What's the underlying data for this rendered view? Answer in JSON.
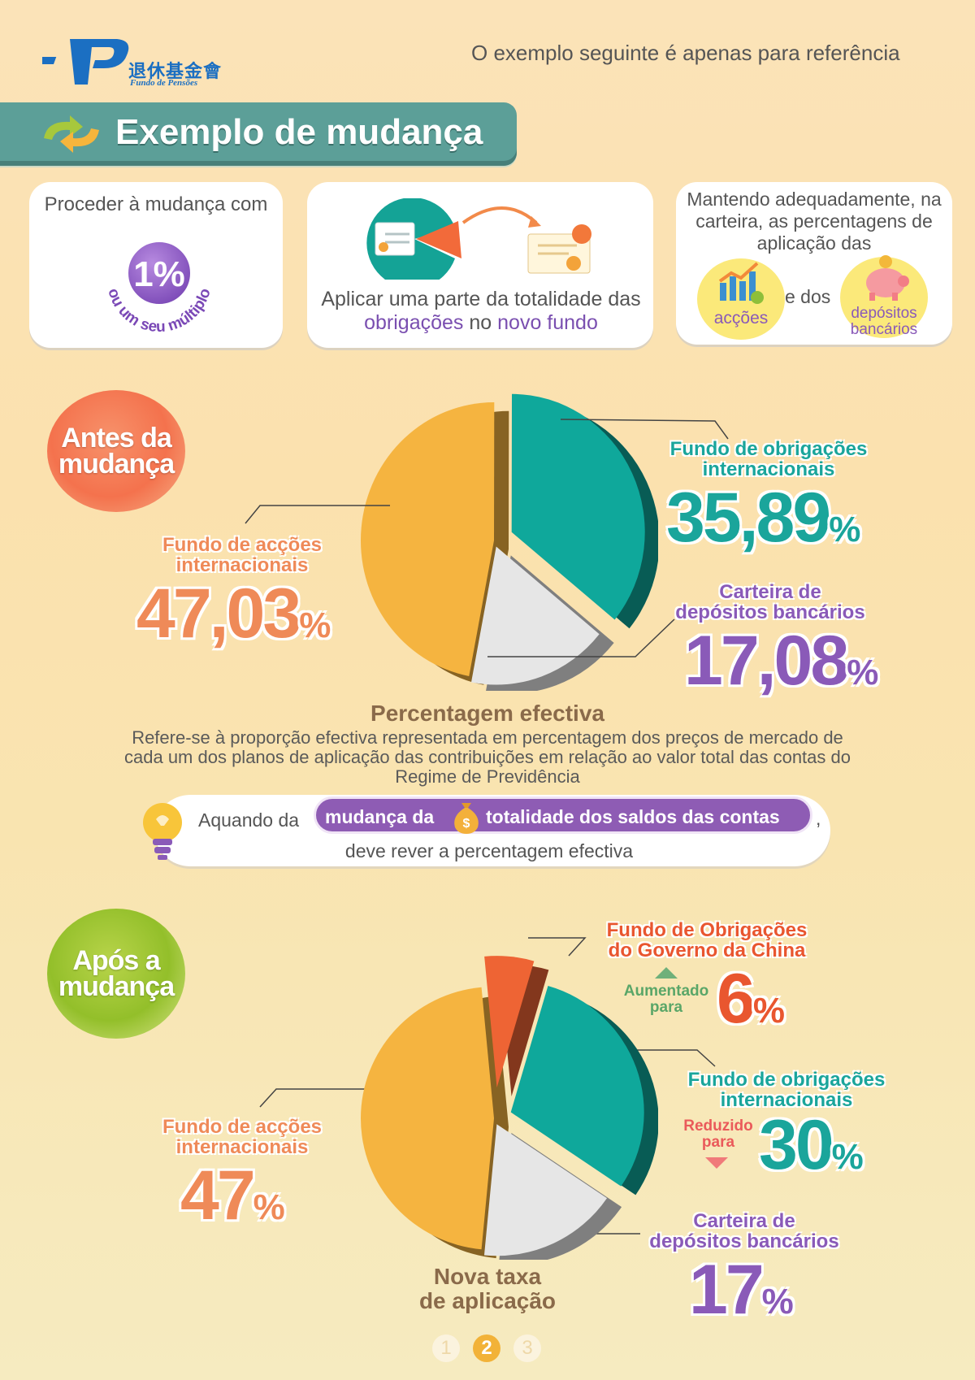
{
  "header": {
    "logo_cn": "退休基金會",
    "logo_pt": "Fundo de Pensões",
    "reference_note": "O exemplo seguinte é apenas para referência"
  },
  "title": "Exemplo de mudança",
  "cards": {
    "card1": {
      "text": "Proceder à mudança com",
      "badge": "1%",
      "arc_text": "ou um seu múltiplo"
    },
    "card2": {
      "text_a": "Aplicar uma parte da totalidade das ",
      "text_hl1": "obrigações",
      "text_b": " no ",
      "text_hl2": "novo fundo"
    },
    "card3": {
      "text": "Mantendo adequadamente, na carteira, as percentagens de aplicação das",
      "label_shares": "acções",
      "and": "e dos",
      "label_deposits": "depósitos bancários"
    }
  },
  "before": {
    "badge_line1": "Antes da",
    "badge_line2": "mudança",
    "intl_bonds": {
      "line1": "Fundo de obrigações",
      "line2": "internacionais",
      "value": "35,89",
      "pct": "%"
    },
    "intl_equities": {
      "line1": "Fundo de acções",
      "line2": "internacionais",
      "value": "47,03",
      "pct": "%"
    },
    "deposits": {
      "line1": "Carteira de",
      "line2": "depósitos bancários",
      "value": "17,08",
      "pct": "%"
    }
  },
  "definition": {
    "title": "Percentagem efectiva",
    "body": "Refere-se à proporção efectiva representada em percentagem dos preços de mercado de cada um dos planos de aplicação das contribuições em relação ao valor total das contas do Regime de Previdência"
  },
  "tip": {
    "pre": "Aquando da",
    "pill_a": "mudança da",
    "coin": "$",
    "pill_b": "totalidade dos saldos das contas",
    "comma": ",",
    "line2": "deve rever a percentagem efectiva"
  },
  "after": {
    "badge_line1": "Após a",
    "badge_line2": "mudança",
    "china_bonds": {
      "line1": "Fundo de Obrigações",
      "line2": "do Governo da China",
      "change_l1": "Aumentado",
      "change_l2": "para",
      "value": "6",
      "pct": "%"
    },
    "intl_bonds": {
      "line1": "Fundo de obrigações",
      "line2": "internacionais",
      "change_l1": "Reduzido",
      "change_l2": "para",
      "value": "30",
      "pct": "%"
    },
    "intl_equities": {
      "line1": "Fundo de acções",
      "line2": "internacionais",
      "value": "47",
      "pct": "%"
    },
    "deposits": {
      "line1": "Carteira de",
      "line2": "depósitos bancários",
      "value": "17",
      "pct": "%"
    },
    "caption_l1": "Nova taxa",
    "caption_l2": "de aplicação"
  },
  "pager": {
    "p1": "1",
    "p2": "2",
    "p3": "3",
    "current": 2
  },
  "colors": {
    "teal": "#1aa59b",
    "orange": "#ef8a58",
    "purple": "#8a5ab8",
    "red": "#e9562f",
    "pie_equities": "#f5b440",
    "pie_bonds": "#0fa89b",
    "pie_deposits": "#e6e6e6",
    "pie_china": "#ee6434"
  },
  "chart_data": [
    {
      "type": "pie",
      "categories": [
        "Fundo de acções internacionais",
        "Fundo de obrigações internacionais",
        "Carteira de depósitos bancários"
      ],
      "values": [
        47.03,
        35.89,
        17.08
      ]
    },
    {
      "type": "pie",
      "categories": [
        "Fundo de acções internacionais",
        "Fundo de Obrigações do Governo da China",
        "Fundo de obrigações internacionais",
        "Carteira de depósitos bancários"
      ],
      "values": [
        47,
        6,
        30,
        17
      ]
    }
  ]
}
